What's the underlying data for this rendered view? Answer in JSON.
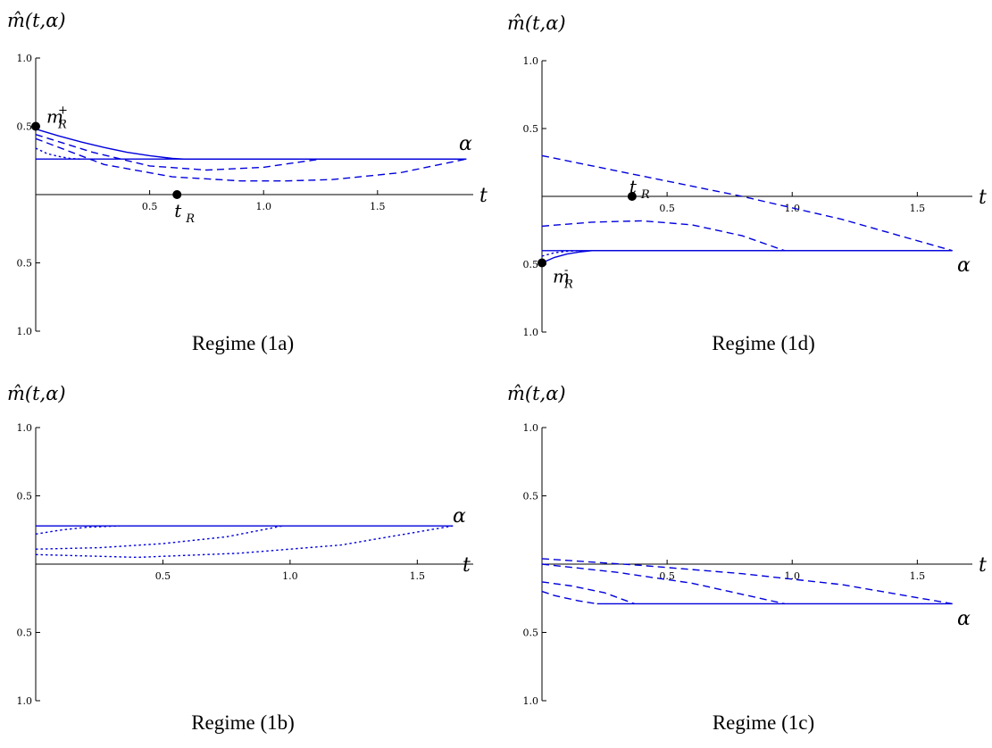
{
  "chart_data": [
    {
      "type": "line",
      "y_label": "m̂(t,α)",
      "caption": "Regime (1a)",
      "x_name": "t",
      "curve_label": "α",
      "xlim": [
        0,
        1.92
      ],
      "ylim": [
        -1.0,
        1.0
      ],
      "x_ticks": [
        {
          "v": 0.5,
          "t": "0.5"
        },
        {
          "v": 1.0,
          "t": "1.0"
        },
        {
          "v": 1.5,
          "t": "1.5"
        }
      ],
      "y_ticks": [
        {
          "v": 1.0,
          "t": "1.0"
        },
        {
          "v": 0.5,
          "t": "0.5"
        },
        {
          "v": -0.5,
          "t": "0.5"
        },
        {
          "v": -1.0,
          "t": "1.0"
        }
      ],
      "points": [
        {
          "name": "m_R_plus",
          "x": 0,
          "y": 0.5,
          "label": "m",
          "sub": "R",
          "sup": "+"
        },
        {
          "name": "t_R",
          "x": 0.62,
          "y": 0,
          "label": "t",
          "sub": "R",
          "sup": ""
        }
      ],
      "series": [
        {
          "style": "solid",
          "x": [
            0,
            1.89
          ],
          "y": [
            0.26,
            0.26
          ]
        },
        {
          "style": "solid",
          "x": [
            0,
            0.1,
            0.2,
            0.3,
            0.4,
            0.5,
            0.6,
            0.65,
            1.89
          ],
          "y": [
            0.48,
            0.43,
            0.385,
            0.345,
            0.31,
            0.285,
            0.265,
            0.26,
            0.26
          ]
        },
        {
          "style": "dashed",
          "x": [
            0,
            0.25,
            0.5,
            0.75,
            1.0,
            1.25
          ],
          "y": [
            0.44,
            0.31,
            0.21,
            0.18,
            0.2,
            0.26
          ]
        },
        {
          "style": "dashed",
          "x": [
            0,
            0.3,
            0.6,
            0.9,
            1.1,
            1.3,
            1.6,
            1.89
          ],
          "y": [
            0.41,
            0.22,
            0.13,
            0.1,
            0.1,
            0.11,
            0.16,
            0.26
          ]
        },
        {
          "style": "dotted",
          "x": [
            0,
            0.05,
            0.1,
            0.15,
            0.2
          ],
          "y": [
            0.34,
            0.3,
            0.28,
            0.265,
            0.26
          ]
        }
      ]
    },
    {
      "type": "line",
      "y_label": "m̂(t,α)",
      "caption": "Regime (1d)",
      "x_name": "t",
      "curve_label": "α",
      "xlim": [
        0,
        1.72
      ],
      "ylim": [
        -1.0,
        1.0
      ],
      "x_ticks": [
        {
          "v": 0.5,
          "t": "0.5"
        },
        {
          "v": 1.0,
          "t": "1.0"
        },
        {
          "v": 1.5,
          "t": "1.5"
        }
      ],
      "y_ticks": [
        {
          "v": 1.0,
          "t": "1.0"
        },
        {
          "v": 0.5,
          "t": "0.5"
        },
        {
          "v": -0.5,
          "t": "0.5"
        },
        {
          "v": -1.0,
          "t": "1.0"
        }
      ],
      "points": [
        {
          "name": "t_R",
          "x": 0.36,
          "y": 0,
          "label": "t",
          "sub": "R",
          "sup": ""
        },
        {
          "name": "m_R_minus",
          "x": 0,
          "y": -0.49,
          "label": "m",
          "sub": "R",
          "sup": "-"
        }
      ],
      "series": [
        {
          "style": "solid",
          "x": [
            0,
            1.64
          ],
          "y": [
            -0.4,
            -0.4
          ]
        },
        {
          "style": "solid",
          "x": [
            0,
            0.05,
            0.1,
            0.15,
            0.2,
            1.64
          ],
          "y": [
            -0.49,
            -0.45,
            -0.425,
            -0.41,
            -0.4,
            -0.4
          ]
        },
        {
          "style": "dashed",
          "x": [
            0,
            0.4,
            0.8,
            1.2,
            1.64
          ],
          "y": [
            0.3,
            0.15,
            0.0,
            -0.17,
            -0.4
          ]
        },
        {
          "style": "dashed",
          "x": [
            0,
            0.2,
            0.4,
            0.6,
            0.8,
            0.97
          ],
          "y": [
            -0.22,
            -0.19,
            -0.18,
            -0.21,
            -0.29,
            -0.4
          ]
        },
        {
          "style": "dotted",
          "x": [
            0,
            0.05,
            0.1,
            0.15
          ],
          "y": [
            -0.44,
            -0.415,
            -0.405,
            -0.4
          ]
        }
      ]
    },
    {
      "type": "line",
      "y_label": "m̂(t,α)",
      "caption": "Regime (1b)",
      "x_name": "t",
      "curve_label": "α",
      "xlim": [
        0,
        1.72
      ],
      "ylim": [
        -1.0,
        1.0
      ],
      "x_ticks": [
        {
          "v": 0.5,
          "t": "0.5"
        },
        {
          "v": 1.0,
          "t": "1.0"
        },
        {
          "v": 1.5,
          "t": "1.5"
        }
      ],
      "y_ticks": [
        {
          "v": 1.0,
          "t": "1.0"
        },
        {
          "v": 0.5,
          "t": "0.5"
        },
        {
          "v": -0.5,
          "t": "0.5"
        },
        {
          "v": -1.0,
          "t": "1.0"
        }
      ],
      "points": [],
      "series": [
        {
          "style": "solid",
          "x": [
            0,
            1.64
          ],
          "y": [
            0.28,
            0.28
          ]
        },
        {
          "style": "dotted",
          "x": [
            0,
            0.1,
            0.2,
            0.33
          ],
          "y": [
            0.22,
            0.25,
            0.27,
            0.28
          ]
        },
        {
          "style": "dotted",
          "x": [
            0,
            0.25,
            0.5,
            0.75,
            0.97
          ],
          "y": [
            0.11,
            0.12,
            0.15,
            0.2,
            0.28
          ]
        },
        {
          "style": "dotted",
          "x": [
            0,
            0.4,
            0.8,
            1.2,
            1.64
          ],
          "y": [
            0.07,
            0.05,
            0.08,
            0.14,
            0.28
          ]
        }
      ]
    },
    {
      "type": "line",
      "y_label": "m̂(t,α)",
      "caption": "Regime (1c)",
      "x_name": "t",
      "curve_label": "α",
      "xlim": [
        0,
        1.72
      ],
      "ylim": [
        -1.0,
        1.0
      ],
      "x_ticks": [
        {
          "v": 0.5,
          "t": "0.5"
        },
        {
          "v": 1.0,
          "t": "1.0"
        },
        {
          "v": 1.5,
          "t": "1.5"
        }
      ],
      "y_ticks": [
        {
          "v": 1.0,
          "t": "1.0"
        },
        {
          "v": 0.5,
          "t": "0.5"
        },
        {
          "v": -0.5,
          "t": "0.5"
        },
        {
          "v": -1.0,
          "t": "1.0"
        }
      ],
      "points": [],
      "series": [
        {
          "style": "solid",
          "x": [
            0.22,
            1.64
          ],
          "y": [
            -0.29,
            -0.29
          ]
        },
        {
          "style": "dashed",
          "x": [
            0,
            0.4,
            0.8,
            1.2,
            1.64
          ],
          "y": [
            0.04,
            -0.01,
            -0.07,
            -0.15,
            -0.29
          ]
        },
        {
          "style": "dashed",
          "x": [
            0,
            0.3,
            0.6,
            0.97
          ],
          "y": [
            0.0,
            -0.06,
            -0.14,
            -0.29
          ]
        },
        {
          "style": "dashed",
          "x": [
            0,
            0.12,
            0.25,
            0.37
          ],
          "y": [
            -0.13,
            -0.16,
            -0.21,
            -0.29
          ]
        },
        {
          "style": "dashed",
          "x": [
            0,
            0.05,
            0.1,
            0.15,
            0.22
          ],
          "y": [
            -0.2,
            -0.23,
            -0.25,
            -0.27,
            -0.29
          ]
        }
      ]
    }
  ],
  "colors": {
    "curve": "#0000dd",
    "axis": "#000000",
    "point": "#000000"
  }
}
